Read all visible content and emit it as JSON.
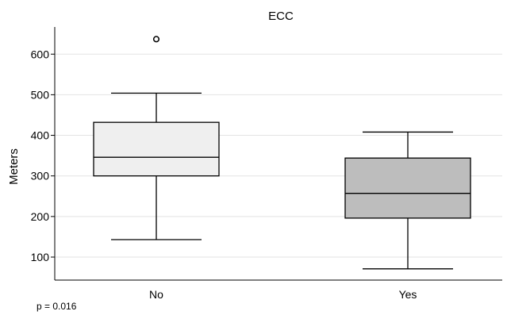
{
  "chart_data": {
    "type": "box",
    "title": "ECC",
    "ylabel": "Meters",
    "xlabel": "",
    "ylim": [
      48,
      657
    ],
    "yticks": [
      100,
      200,
      300,
      400,
      500,
      600
    ],
    "grid": "horizontal",
    "categories": [
      "No",
      "Yes"
    ],
    "boxes": [
      {
        "category": "No",
        "whisker_low": 143,
        "q1": 300,
        "median": 346,
        "q3": 432,
        "whisker_high": 504,
        "outliers": [
          637
        ],
        "fill": "#efefef"
      },
      {
        "category": "Yes",
        "whisker_low": 71,
        "q1": 196,
        "median": 257,
        "q3": 344,
        "whisker_high": 408,
        "outliers": [],
        "fill": "#bdbdbd"
      }
    ]
  },
  "footnote": "p = 0.016"
}
